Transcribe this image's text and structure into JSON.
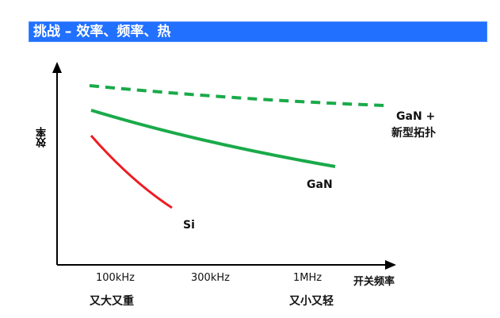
{
  "title": "挑战 – 效率、频率、热",
  "y_axis_label": "效率",
  "x_axis_label": "开关频率",
  "x_ticks": [
    "100kHz",
    "300kHz",
    "1MHz"
  ],
  "captions": {
    "left": "又大又重",
    "right": "又小又轻"
  },
  "series": [
    {
      "name": "Si",
      "color": "#ee1c24",
      "style": "solid"
    },
    {
      "name": "GaN",
      "color": "#1aaa4a",
      "style": "solid"
    },
    {
      "name_line1": "GaN +",
      "name_line2": "新型拓扑",
      "color": "#1aaa4a",
      "style": "dashed"
    }
  ]
}
